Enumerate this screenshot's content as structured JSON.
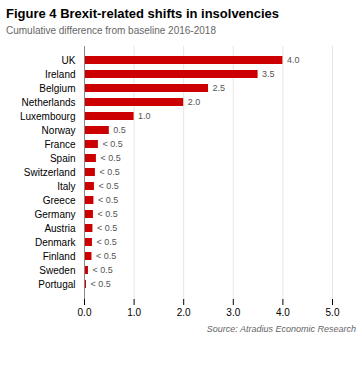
{
  "chart_data": {
    "type": "bar",
    "orientation": "horizontal",
    "title": "Figure 4 Brexit-related shifts in insolvencies",
    "subtitle": "Cumulative difference from baseline 2016-2018",
    "source": "Source: Atradius Economic Research",
    "categories": [
      "UK",
      "Ireland",
      "Belgium",
      "Netherlands",
      "Luxembourg",
      "Norway",
      "France",
      "Spain",
      "Switzerland",
      "Italy",
      "Greece",
      "Germany",
      "Austria",
      "Denmark",
      "Finland",
      "Sweden",
      "Portugal"
    ],
    "values": [
      4.0,
      3.5,
      2.5,
      2.0,
      1.0,
      0.5,
      0.28,
      0.24,
      0.22,
      0.2,
      0.19,
      0.18,
      0.17,
      0.16,
      0.15,
      0.08,
      0.04
    ],
    "value_labels": [
      "4.0",
      "3.5",
      "2.5",
      "2.0",
      "1.0",
      "0.5",
      "< 0.5",
      "< 0.5",
      "< 0.5",
      "< 0.5",
      "< 0.5",
      "< 0.5",
      "< 0.5",
      "< 0.5",
      "< 0.5",
      "< 0.5",
      "< 0.5"
    ],
    "data_labels": true,
    "color": "#cc0000",
    "xlim": [
      0,
      5
    ],
    "xticks": [
      0,
      1,
      2,
      3,
      4,
      5
    ],
    "grid": true
  }
}
